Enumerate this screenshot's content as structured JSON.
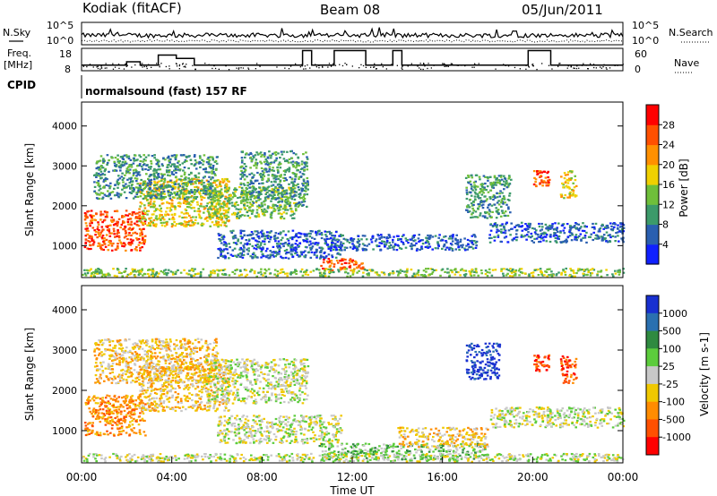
{
  "header": {
    "station": "Kodiak (fitACF)",
    "beam": "Beam 08",
    "date": "05/Jun/2011"
  },
  "aux": {
    "nsky_label": "N.Sky",
    "nsearch_label": "N.Search",
    "freq_label_1": "Freq.",
    "freq_label_2": "[MHz]",
    "nave_label": "Nave",
    "cpid_label": "CPID",
    "cpid_text": "normalsound (fast) 157 RF",
    "noise_ticks_left": [
      "10^5",
      "10^0"
    ],
    "noise_ticks_right": [
      "10^5",
      "10^0"
    ],
    "freq_ticks": [
      "18",
      "8"
    ],
    "nave_ticks": [
      "60",
      "0"
    ]
  },
  "chart_data": [
    {
      "type": "line",
      "name": "noise",
      "series": [
        {
          "name": "N.Sky"
        },
        {
          "name": "N.Search"
        }
      ],
      "yscale": "log"
    },
    {
      "type": "line",
      "name": "frequency",
      "series": [
        {
          "name": "Freq."
        },
        {
          "name": "Nave"
        }
      ],
      "freq_segments": [
        {
          "start": 0.0,
          "end": 2.0,
          "value": 10.5
        },
        {
          "start": 2.0,
          "end": 2.6,
          "value": 12
        },
        {
          "start": 2.6,
          "end": 3.4,
          "value": 10.5
        },
        {
          "start": 3.4,
          "end": 4.2,
          "value": 15
        },
        {
          "start": 4.2,
          "end": 5.0,
          "value": 13.5
        },
        {
          "start": 5.0,
          "end": 9.8,
          "value": 10.5
        },
        {
          "start": 9.8,
          "end": 10.2,
          "value": 17
        },
        {
          "start": 10.2,
          "end": 11.2,
          "value": 10.5
        },
        {
          "start": 11.2,
          "end": 12.6,
          "value": 17
        },
        {
          "start": 12.6,
          "end": 13.8,
          "value": 10.5
        },
        {
          "start": 13.8,
          "end": 14.2,
          "value": 17
        },
        {
          "start": 14.2,
          "end": 19.8,
          "value": 10.5
        },
        {
          "start": 19.8,
          "end": 20.8,
          "value": 17
        },
        {
          "start": 20.8,
          "end": 24.0,
          "value": 10.5
        }
      ]
    },
    {
      "type": "heatmap",
      "name": "power",
      "ylabel": "Slant Range [km]",
      "yticks": [
        "1000",
        "2000",
        "3000",
        "4000"
      ],
      "ylim": [
        200,
        4600
      ],
      "xlim": [
        0,
        24
      ],
      "colorbar": {
        "label": "Power [dB]",
        "ticks": [
          "4",
          "8",
          "12",
          "16",
          "20",
          "24",
          "28"
        ],
        "colors": [
          "#1020ff",
          "#2a5fb0",
          "#3c9a6a",
          "#6fbf3a",
          "#f0d000",
          "#ff9000",
          "#ff5000",
          "#ff0000"
        ]
      },
      "echo_regions": [
        {
          "t0": 0.1,
          "t1": 2.8,
          "r0": 900,
          "r1": 1900,
          "c": 6
        },
        {
          "t0": 2.5,
          "t1": 6.5,
          "r0": 1500,
          "r1": 2700,
          "c": 4
        },
        {
          "t0": 0.5,
          "t1": 6.0,
          "r0": 2200,
          "r1": 3300,
          "c": 2
        },
        {
          "t0": 5.5,
          "t1": 9.5,
          "r0": 1700,
          "r1": 2500,
          "c": 3
        },
        {
          "t0": 7.0,
          "t1": 10.0,
          "r0": 2000,
          "r1": 3400,
          "c": 2
        },
        {
          "t0": 6.0,
          "t1": 11.5,
          "r0": 700,
          "r1": 1400,
          "c": 1
        },
        {
          "t0": 10.5,
          "t1": 12.5,
          "r0": 400,
          "r1": 700,
          "c": 6
        },
        {
          "t0": 11.0,
          "t1": 17.5,
          "r0": 900,
          "r1": 1300,
          "c": 1
        },
        {
          "t0": 17.0,
          "t1": 19.0,
          "r0": 1700,
          "r1": 2800,
          "c": 2
        },
        {
          "t0": 18.0,
          "t1": 24.0,
          "r0": 1100,
          "r1": 1600,
          "c": 1
        },
        {
          "t0": 20.0,
          "t1": 20.7,
          "r0": 2500,
          "r1": 2900,
          "c": 6
        },
        {
          "t0": 21.2,
          "t1": 21.9,
          "r0": 2200,
          "r1": 2900,
          "c": 4
        },
        {
          "t0": 0.0,
          "t1": 24.0,
          "r0": 250,
          "r1": 450,
          "c": 3
        }
      ]
    },
    {
      "type": "heatmap",
      "name": "velocity",
      "ylabel": "Slant Range [km]",
      "yticks": [
        "1000",
        "2000",
        "3000",
        "4000"
      ],
      "xlabel": "Time UT",
      "xticks": [
        "00:00",
        "04:00",
        "08:00",
        "12:00",
        "16:00",
        "20:00",
        "00:00"
      ],
      "ylim": [
        200,
        4600
      ],
      "xlim": [
        0,
        24
      ],
      "colorbar": {
        "label": "Velocity [m s-1]",
        "ticks": [
          "1000",
          "500",
          "100",
          "25",
          "-25",
          "-100",
          "-500",
          "-1000"
        ],
        "colors": [
          "#1830d0",
          "#2a70b0",
          "#2f8a40",
          "#5ccc3c",
          "#c8c8c8",
          "#f0c800",
          "#ff8c00",
          "#ff5000",
          "#ff0000"
        ]
      },
      "echo_regions": [
        {
          "t0": 0.1,
          "t1": 2.8,
          "r0": 900,
          "r1": 1900,
          "c": 6
        },
        {
          "t0": 2.5,
          "t1": 6.5,
          "r0": 1500,
          "r1": 2700,
          "c": 5
        },
        {
          "t0": 0.5,
          "t1": 6.0,
          "r0": 2200,
          "r1": 3300,
          "c": 5
        },
        {
          "t0": 5.5,
          "t1": 10.0,
          "r0": 1700,
          "r1": 2800,
          "c": 4
        },
        {
          "t0": 6.0,
          "t1": 11.5,
          "r0": 700,
          "r1": 1400,
          "c": 4
        },
        {
          "t0": 10.5,
          "t1": 18.0,
          "r0": 300,
          "r1": 700,
          "c": 3
        },
        {
          "t0": 14.0,
          "t1": 18.0,
          "r0": 600,
          "r1": 1100,
          "c": 5
        },
        {
          "t0": 17.0,
          "t1": 18.5,
          "r0": 2300,
          "r1": 3200,
          "c": 0
        },
        {
          "t0": 18.0,
          "t1": 24.0,
          "r0": 1100,
          "r1": 1600,
          "c": 4
        },
        {
          "t0": 20.0,
          "t1": 20.7,
          "r0": 2500,
          "r1": 2900,
          "c": 7
        },
        {
          "t0": 21.2,
          "t1": 21.9,
          "r0": 2200,
          "r1": 2900,
          "c": 7
        },
        {
          "t0": 0.0,
          "t1": 24.0,
          "r0": 250,
          "r1": 450,
          "c": 4
        }
      ]
    }
  ]
}
